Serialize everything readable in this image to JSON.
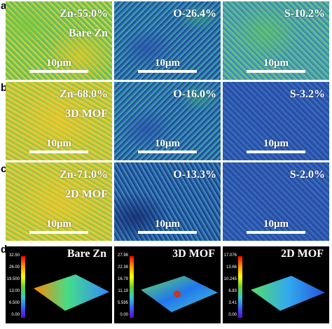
{
  "panels": {
    "a": {
      "letter": "a",
      "zn": {
        "label": "Zn-55.0%",
        "sample": "Bare Zn",
        "scale": "10μm"
      },
      "o": {
        "label": "O-26.4%",
        "scale": "10μm"
      },
      "s": {
        "label": "S-10.2%",
        "scale": "10μm"
      }
    },
    "b": {
      "letter": "b",
      "zn": {
        "label": "Zn-68.0%",
        "sample": "3D MOF",
        "scale": "10μm"
      },
      "o": {
        "label": "O-16.0%",
        "scale": "10μm"
      },
      "s": {
        "label": "S-3.2%",
        "scale": "10μm"
      }
    },
    "c": {
      "letter": "c",
      "zn": {
        "label": "Zn-71.0%",
        "sample": "2D MOF",
        "scale": "10μm"
      },
      "o": {
        "label": "O-13.3%",
        "scale": "10μm"
      },
      "s": {
        "label": "S-2.0%",
        "scale": "10μm"
      }
    },
    "d": {
      "letter": "d",
      "surfaces": [
        {
          "title": "Bare Zn",
          "ticks": [
            "32.50",
            "26.00",
            "19.500",
            "13.00",
            "6.500",
            "0.00"
          ]
        },
        {
          "title": "3D MOF",
          "ticks": [
            "27.98",
            "22.38",
            "16.79",
            "11.19",
            "5.595",
            "0.00"
          ]
        },
        {
          "title": "2D MOF",
          "ticks": [
            "17.076",
            "13.66",
            "10.245",
            "6.83",
            "3.41",
            "0.00"
          ]
        }
      ]
    }
  },
  "colors": {
    "zn": "#c8d040",
    "o": "#2f6fb8",
    "s": "#3a78b8",
    "surface_bg": "#000000"
  }
}
